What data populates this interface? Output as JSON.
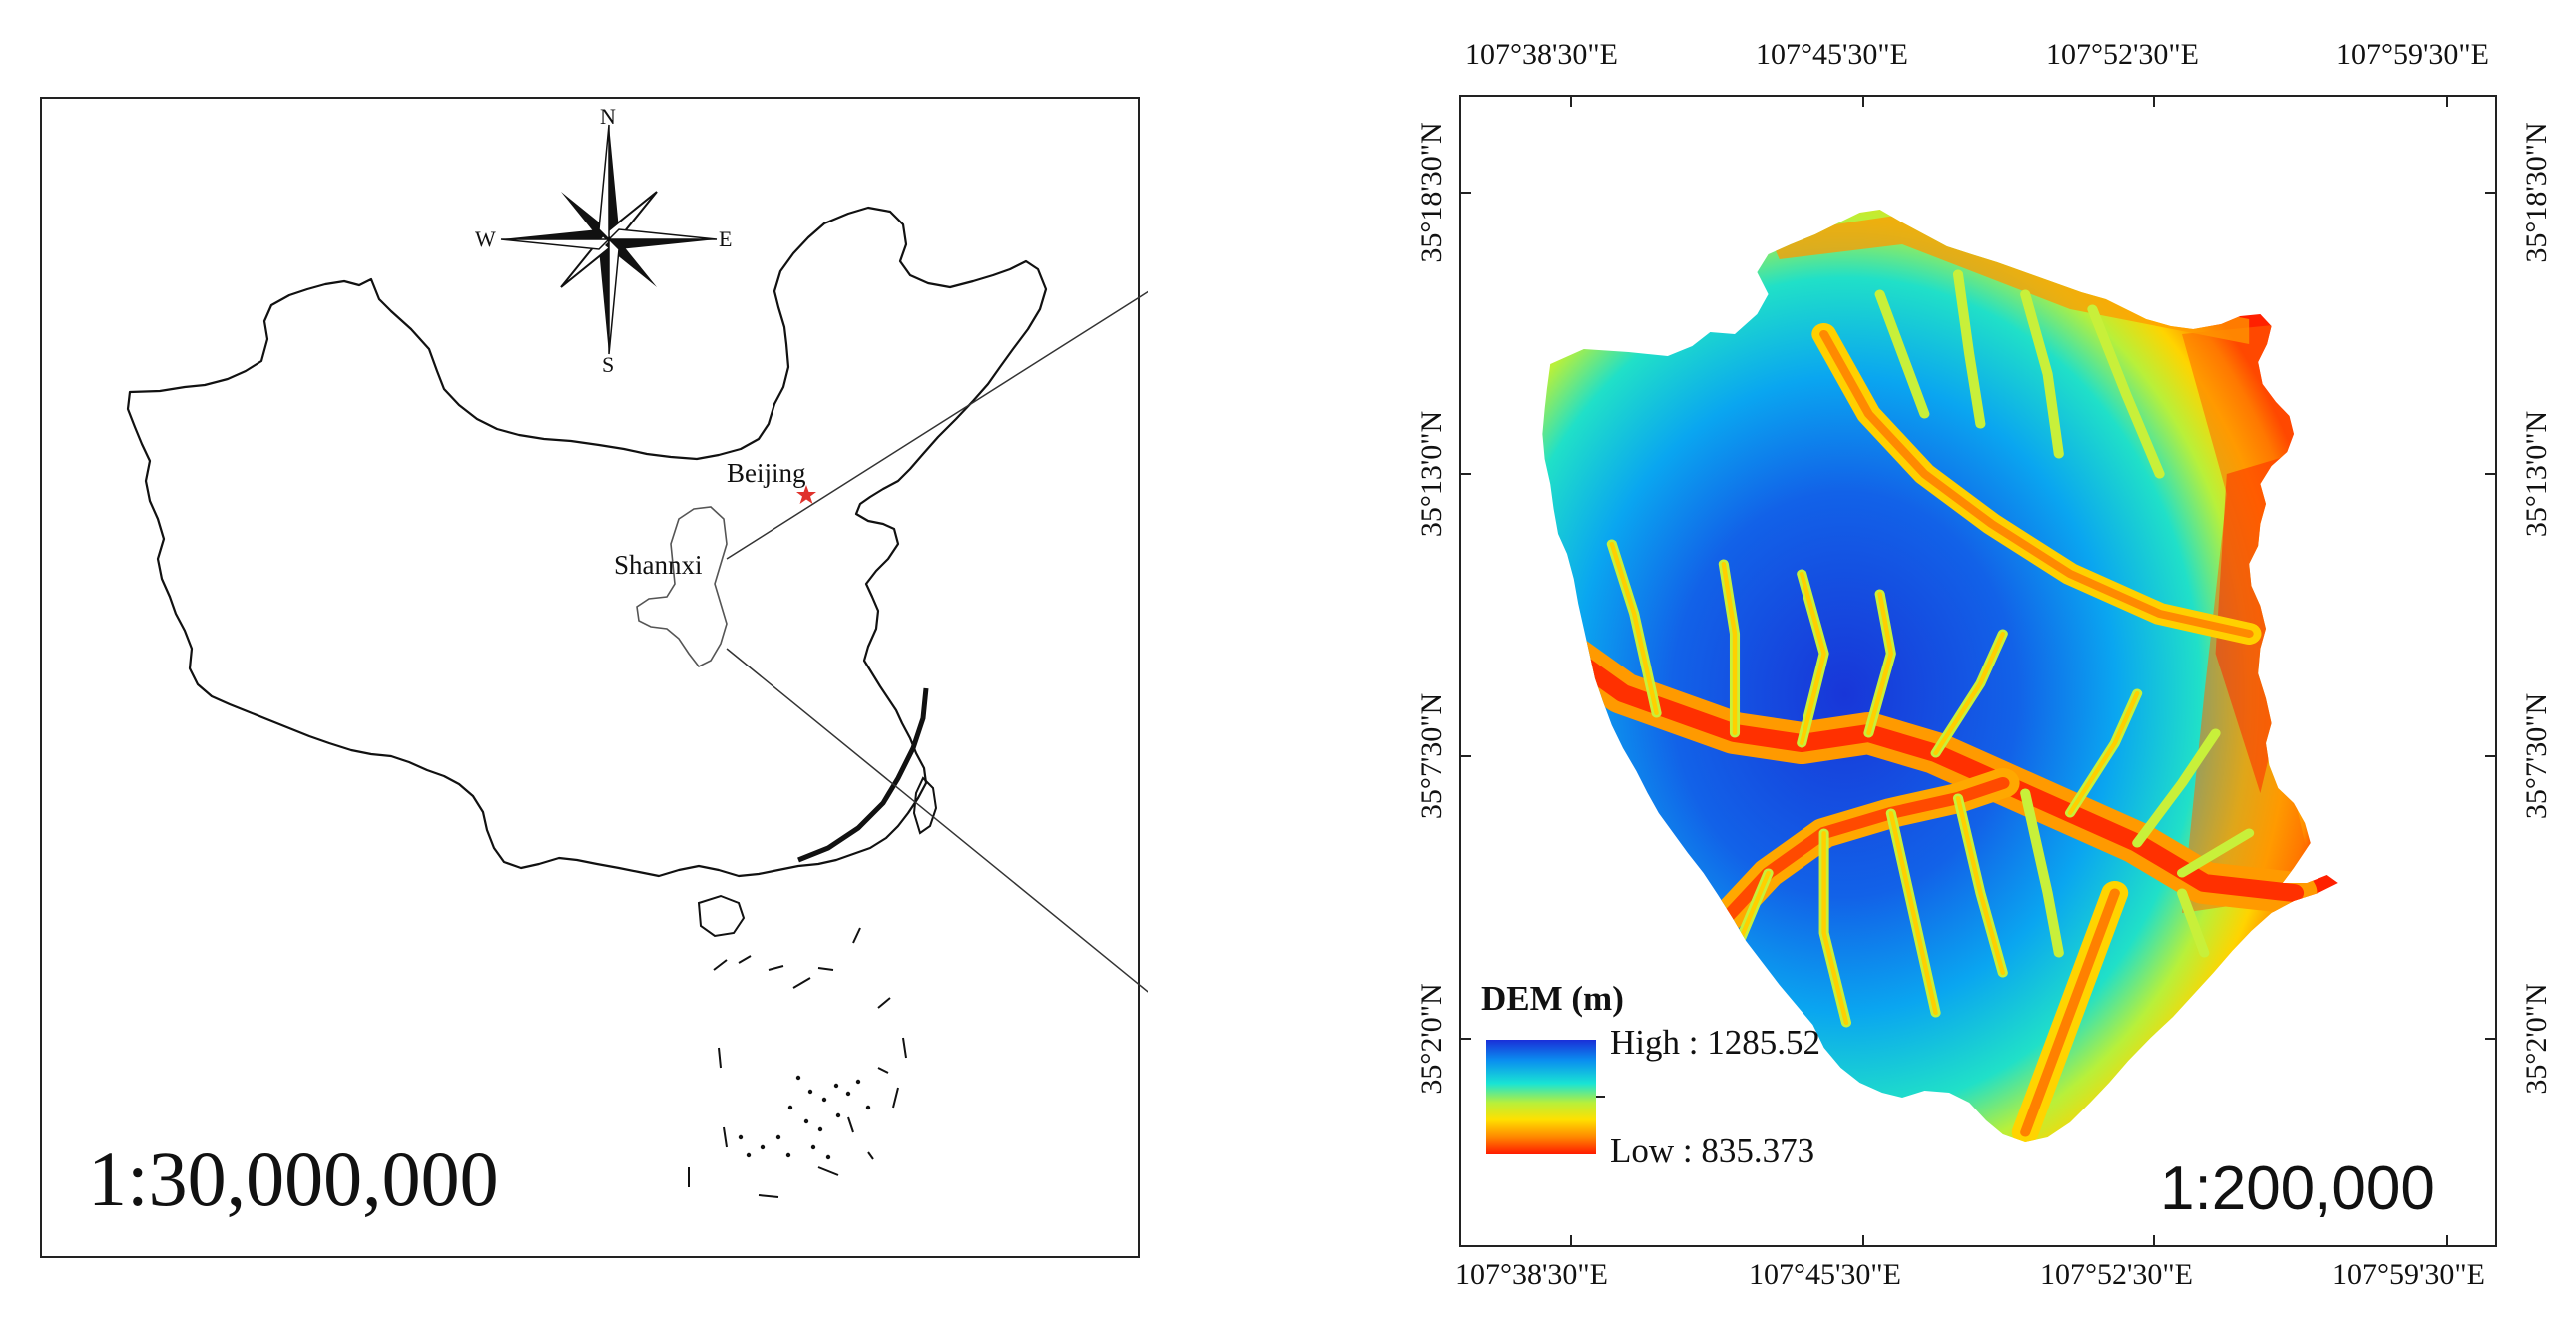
{
  "left_map": {
    "scale": "1:30,000,000",
    "compass": {
      "north": "N",
      "south": "S",
      "east": "E",
      "west": "W"
    },
    "places": {
      "capital": "Beijing",
      "study_province": "Shannxi"
    },
    "capital_marker_color": "#e0322c"
  },
  "right_map": {
    "scale": "1:200,000",
    "top_labels": [
      "107°38'30\"E",
      "107°45'30\"E",
      "107°52'30\"E",
      "107°59'30\"E"
    ],
    "bottom_labels": [
      "107°38'30\"E",
      "107°45'30\"E",
      "107°52'30\"E",
      "107°59'30\"E"
    ],
    "left_labels": [
      "35°18'30\"N",
      "35°13'0\"N",
      "35°7'30\"N",
      "35°2'0\"N"
    ],
    "right_labels": [
      "35°18'30\"N",
      "35°13'0\"N",
      "35°7'30\"N",
      "35°2'0\"N"
    ],
    "legend": {
      "title": "DEM (m)",
      "high_label": "High : 1285.52",
      "low_label": "Low : 835.373",
      "high_value": 1285.52,
      "low_value": 835.373,
      "ramp_colors": [
        "#1a2fd8",
        "#0a8ff0",
        "#19e4d4",
        "#b8f03a",
        "#ffe000",
        "#ff8a00",
        "#ff1a00"
      ]
    }
  }
}
